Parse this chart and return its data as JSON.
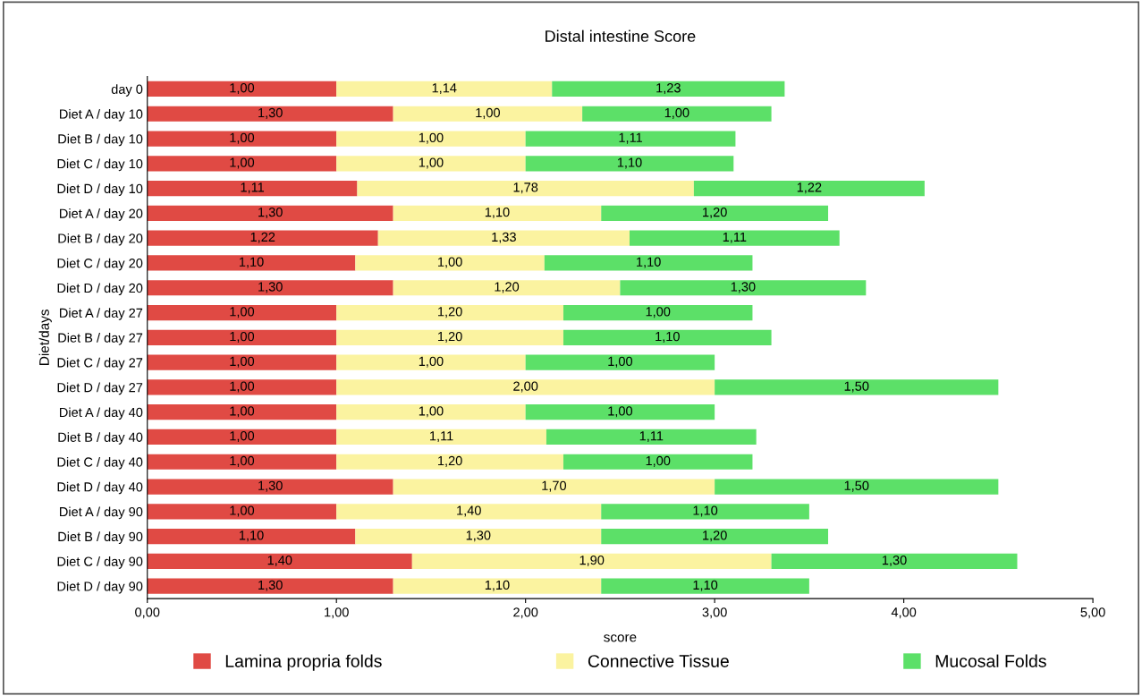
{
  "chart_data": {
    "type": "bar",
    "orientation": "horizontal",
    "stacked": true,
    "title": "Distal intestine Score",
    "xlabel": "score",
    "ylabel": "Diet/days",
    "categories": [
      "day 0",
      "Diet A / day 10",
      "Diet B / day 10",
      "Diet C / day 10",
      "Diet D / day 10",
      "Diet A / day 20",
      "Diet B / day 20",
      "Diet C / day 20",
      "Diet D / day 20",
      "Diet A / day 27",
      "Diet B / day 27",
      "Diet C / day 27",
      "Diet D / day 27",
      "Diet A / day 40",
      "Diet B / day 40",
      "Diet C / day 40",
      "Diet D / day 40",
      "Diet A / day 90",
      "Diet B / day 90",
      "Diet C / day 90",
      "Diet D / day 90"
    ],
    "series": [
      {
        "name": "Lamina propria folds",
        "color": "#e04a44",
        "values": [
          1.0,
          1.3,
          1.0,
          1.0,
          1.11,
          1.3,
          1.22,
          1.1,
          1.3,
          1.0,
          1.0,
          1.0,
          1.0,
          1.0,
          1.0,
          1.0,
          1.3,
          1.0,
          1.1,
          1.4,
          1.3
        ],
        "value_labels": [
          "1,00",
          "1,30",
          "1,00",
          "1,00",
          "1,11",
          "1,30",
          "1,22",
          "1,10",
          "1,30",
          "1,00",
          "1,00",
          "1,00",
          "1,00",
          "1,00",
          "1,00",
          "1,00",
          "1,30",
          "1,00",
          "1,10",
          "1,40",
          "1,30"
        ]
      },
      {
        "name": "Connective Tissue",
        "color": "#fbf3a0",
        "values": [
          1.14,
          1.0,
          1.0,
          1.0,
          1.78,
          1.1,
          1.33,
          1.0,
          1.2,
          1.2,
          1.2,
          1.0,
          2.0,
          1.0,
          1.11,
          1.2,
          1.7,
          1.4,
          1.3,
          1.9,
          1.1
        ],
        "value_labels": [
          "1,14",
          "1,00",
          "1,00",
          "1,00",
          "1,78",
          "1,10",
          "1,33",
          "1,00",
          "1,20",
          "1,20",
          "1,20",
          "1,00",
          "2,00",
          "1,00",
          "1,11",
          "1,20",
          "1,70",
          "1,40",
          "1,30",
          "1,90",
          "1,10"
        ]
      },
      {
        "name": "Mucosal Folds",
        "color": "#5ce068",
        "values": [
          1.23,
          1.0,
          1.11,
          1.1,
          1.22,
          1.2,
          1.11,
          1.1,
          1.3,
          1.0,
          1.1,
          1.0,
          1.5,
          1.0,
          1.11,
          1.0,
          1.5,
          1.1,
          1.2,
          1.3,
          1.1
        ],
        "value_labels": [
          "1,23",
          "1,00",
          "1,11",
          "1,10",
          "1,22",
          "1,20",
          "1,11",
          "1,10",
          "1,30",
          "1,00",
          "1,10",
          "1,00",
          "1,50",
          "1,00",
          "1,11",
          "1,00",
          "1,50",
          "1,10",
          "1,20",
          "1,30",
          "1,10"
        ]
      }
    ],
    "xlim": [
      0,
      5
    ],
    "xticks": [
      {
        "value": 0,
        "label": "0,00"
      },
      {
        "value": 1,
        "label": "1,00"
      },
      {
        "value": 2,
        "label": "2,00"
      },
      {
        "value": 3,
        "label": "3,00"
      },
      {
        "value": 4,
        "label": "4,00"
      },
      {
        "value": 5,
        "label": "5,00"
      }
    ],
    "grid": false,
    "legend": "bottom"
  }
}
